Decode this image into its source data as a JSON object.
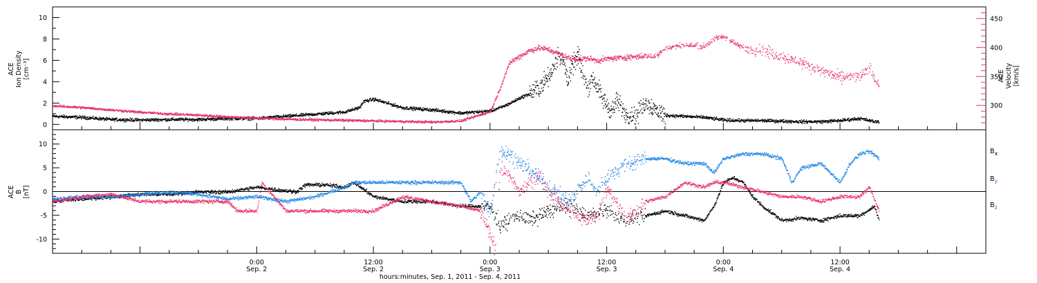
{
  "x_axis": {
    "title": "hours:minutes, Sep.  1, 2011 - Sep.  4, 2011",
    "range_hours": [
      -21,
      75
    ],
    "ticks": [
      {
        "h": 0,
        "time": "0:00",
        "day": "Sep. 2"
      },
      {
        "h": 12,
        "time": "12:00",
        "day": "Sep. 2"
      },
      {
        "h": 24,
        "time": "0:00",
        "day": "Sep. 3"
      },
      {
        "h": 36,
        "time": "12:00",
        "day": "Sep. 3"
      },
      {
        "h": 48,
        "time": "0:00",
        "day": "Sep. 4"
      },
      {
        "h": 60,
        "time": "12:00",
        "day": "Sep. 4"
      }
    ]
  },
  "chart_data": [
    {
      "type": "scatter",
      "panel": "plasma",
      "left_axis": {
        "label_lines": [
          "ACE",
          "Ion Density",
          "[cm⁻³]"
        ],
        "ylim": [
          -0.5,
          11
        ],
        "ticks": [
          0,
          2,
          4,
          6,
          8,
          10
        ],
        "color": "#000000"
      },
      "right_axis": {
        "label_lines": [
          "ACE",
          "Velocity",
          "[km/s]"
        ],
        "ylim": [
          258,
          470
        ],
        "ticks": [
          300,
          350,
          400,
          450
        ],
        "color": "#e6326e"
      },
      "series": [
        {
          "axis": "left",
          "color": "#000000",
          "x": [
            -21,
            -18,
            -15,
            -12,
            -9,
            -6,
            -3,
            0,
            3,
            6,
            9,
            10.5,
            11,
            12,
            15,
            18,
            21,
            24,
            25,
            26,
            27,
            28,
            29,
            30,
            30.5,
            31,
            31.5,
            32,
            32.5,
            33,
            33.5,
            34,
            34.5,
            35,
            35.5,
            36,
            36.5,
            37,
            38,
            39,
            40,
            41,
            42,
            44,
            46,
            48,
            50,
            52,
            54,
            56,
            58,
            60,
            62,
            63.5,
            64
          ],
          "y": [
            0.8,
            0.7,
            0.5,
            0.45,
            0.5,
            0.5,
            0.6,
            0.6,
            0.8,
            1.0,
            1.2,
            1.6,
            2.2,
            2.4,
            1.6,
            1.4,
            1.1,
            1.3,
            1.6,
            2.0,
            2.5,
            2.9,
            3.5,
            4.5,
            5.5,
            6.5,
            5.8,
            4.2,
            5.6,
            6.5,
            4.8,
            3.5,
            4.5,
            3.5,
            2.5,
            1.8,
            1.3,
            2.2,
            1.0,
            0.8,
            2.2,
            1.4,
            0.9,
            0.8,
            0.7,
            0.45,
            0.4,
            0.4,
            0.35,
            0.3,
            0.3,
            0.4,
            0.6,
            0.3,
            0.3
          ]
        },
        {
          "axis": "right",
          "color": "#e6326e",
          "x": [
            -21,
            -18,
            -15,
            -12,
            -9,
            -6,
            -3,
            0,
            3,
            6,
            9,
            12,
            15,
            18,
            21,
            24,
            25,
            26,
            27,
            28,
            29,
            30,
            31,
            32,
            33,
            34,
            35,
            36,
            38,
            40,
            41,
            42,
            44,
            46,
            47,
            48,
            49,
            50,
            52,
            54,
            56,
            58,
            60,
            62,
            63,
            64
          ],
          "y": [
            300,
            297,
            293,
            289,
            286,
            284,
            281,
            279,
            277,
            276,
            275,
            274,
            273,
            272,
            274,
            290,
            330,
            375,
            385,
            395,
            400,
            397,
            390,
            383,
            380,
            382,
            378,
            381,
            384,
            386,
            385,
            400,
            405,
            403,
            415,
            420,
            410,
            400,
            395,
            385,
            375,
            360,
            350,
            350,
            365,
            335
          ]
        }
      ]
    },
    {
      "type": "scatter",
      "panel": "magnetic_field",
      "left_axis": {
        "label_lines": [
          "ACE",
          "B",
          "[nT]"
        ],
        "ylim": [
          -13,
          13
        ],
        "ticks": [
          -10,
          -5,
          0,
          5,
          10
        ],
        "color": "#000000"
      },
      "zero_line": true,
      "series": [
        {
          "name": "B",
          "sub": "x",
          "color": "#000000",
          "x": [
            -21,
            -18,
            -15,
            -12,
            -9,
            -6,
            -3,
            0,
            2,
            4,
            5,
            7,
            9,
            10,
            12,
            15,
            18,
            21,
            24,
            25,
            26,
            27,
            28,
            30,
            32,
            34,
            36,
            38,
            40,
            42,
            44,
            46,
            47,
            48,
            49,
            50,
            51,
            52,
            54,
            56,
            58,
            60,
            62,
            63.5,
            64
          ],
          "y": [
            -2,
            -1.5,
            -1,
            -0.5,
            -0.5,
            0,
            0,
            1,
            0.5,
            0,
            1.5,
            1.5,
            1,
            2,
            -1,
            -2,
            -2,
            -3,
            -3,
            -7,
            -6,
            -5,
            -6,
            -4,
            -3,
            -5,
            -4,
            -6,
            -5,
            -4,
            -5,
            -6,
            -3,
            2,
            3,
            2,
            -1,
            -3,
            -6,
            -5.5,
            -6,
            -5,
            -5,
            -3,
            -6
          ]
        },
        {
          "name": "B",
          "sub": "y",
          "color": "#1f86e6",
          "x": [
            -21,
            -18,
            -15,
            -12,
            -9,
            -6,
            -3,
            0,
            3,
            6,
            9,
            10,
            12,
            15,
            18,
            21,
            22,
            23,
            24,
            25,
            26,
            27,
            28,
            29,
            30,
            32,
            34,
            35,
            36,
            38,
            40,
            42,
            44,
            46,
            47,
            48,
            50,
            52,
            54,
            55,
            56,
            58,
            60,
            61,
            62,
            63,
            64
          ],
          "y": [
            -1.5,
            -1,
            -1,
            -0.5,
            0,
            -0.5,
            -1.5,
            -1,
            -2,
            -1,
            1,
            2,
            2,
            2,
            2,
            2,
            -2,
            0,
            -5,
            9,
            8,
            6,
            5,
            3,
            1,
            -2,
            3,
            0,
            3,
            6,
            7,
            7,
            6,
            6,
            4,
            7,
            8,
            8,
            7,
            2,
            5,
            6,
            2,
            6,
            8,
            8.5,
            7
          ]
        },
        {
          "name": "B",
          "sub": "z",
          "color": "#e6326e",
          "x": [
            -21,
            -18,
            -15,
            -12,
            -9,
            -6,
            -3,
            -2,
            0,
            0.5,
            3,
            6,
            9,
            12,
            15,
            18,
            21,
            23,
            24,
            24.5,
            25,
            26,
            27,
            28,
            29,
            30,
            32,
            34,
            35,
            36,
            38,
            40,
            42,
            44,
            46,
            47,
            48,
            50,
            52,
            54,
            56,
            58,
            60,
            62,
            63,
            64
          ],
          "y": [
            -2,
            -1,
            -0.5,
            -2,
            -2,
            -2,
            -2,
            -4,
            -4,
            2,
            -4,
            -4,
            -4,
            -4,
            -1,
            -2,
            -3,
            -4,
            -9,
            -12,
            5,
            3,
            0,
            2,
            3,
            0,
            -4,
            -6,
            -5,
            1,
            -6,
            -2,
            -1,
            2,
            1,
            2,
            2,
            1,
            0,
            -1,
            -1,
            -2,
            -1,
            -1,
            1,
            -4
          ]
        }
      ]
    }
  ]
}
